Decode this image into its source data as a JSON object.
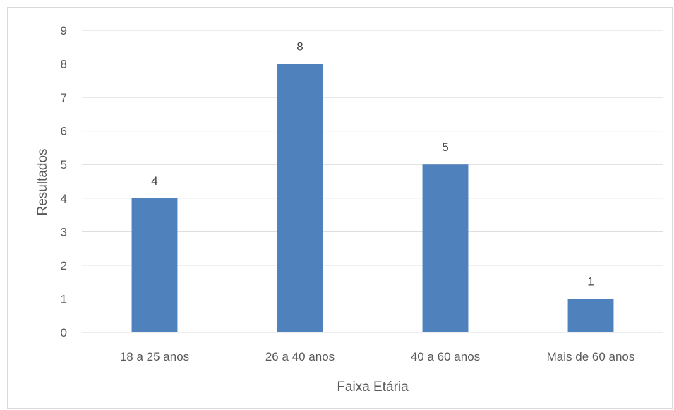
{
  "chart_data": {
    "type": "bar",
    "title": "",
    "xlabel": "Faixa Etária",
    "ylabel": "Resultados",
    "categories": [
      "18 a 25 anos",
      "26 a 40 anos",
      "40 a 60 anos",
      "Mais de 60 anos"
    ],
    "values": [
      4,
      8,
      5,
      1
    ],
    "ylim": [
      0,
      9
    ],
    "yticks": [
      "0",
      "1",
      "2",
      "3",
      "4",
      "5",
      "6",
      "7",
      "8",
      "9"
    ],
    "data_labels": [
      "4",
      "8",
      "5",
      "1"
    ],
    "grid": true,
    "legend": "none",
    "bar_color": "#4f81bd",
    "grid_color": "#d9d9d9"
  }
}
